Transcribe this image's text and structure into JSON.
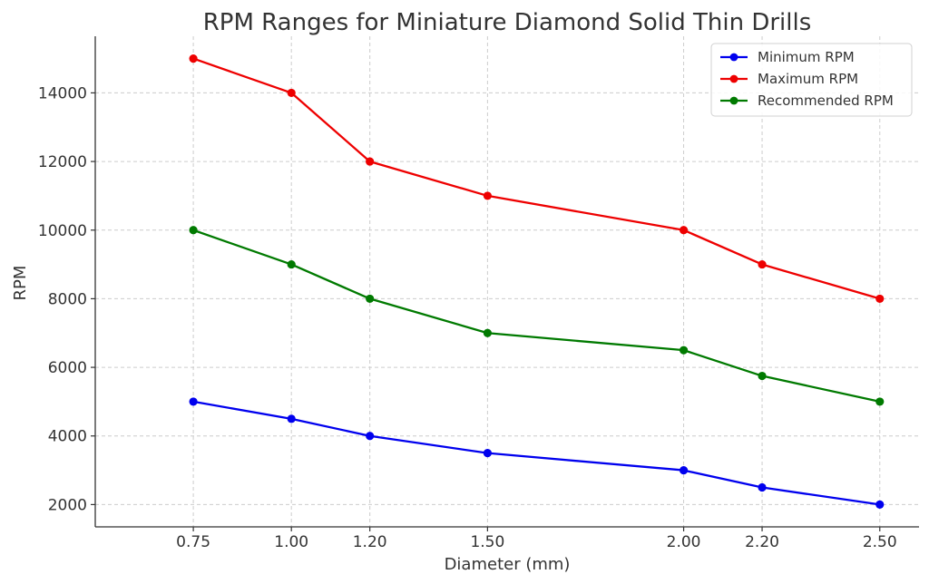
{
  "chart_data": {
    "type": "line",
    "title": "RPM Ranges for Miniature Diamond Solid Thin Drills",
    "xlabel": "Diameter (mm)",
    "ylabel": "RPM",
    "x": [
      0.75,
      1.0,
      1.2,
      1.5,
      2.0,
      2.2,
      2.5
    ],
    "x_tick_labels": [
      "0.75",
      "1.00",
      "1.20",
      "1.50",
      "2.00",
      "2.20",
      "2.50"
    ],
    "y_ticks": [
      2000,
      4000,
      6000,
      8000,
      10000,
      12000,
      14000
    ],
    "xlim": [
      0.5,
      2.6
    ],
    "ylim": [
      1350,
      15650
    ],
    "grid": true,
    "legend_position": "top-right",
    "series": [
      {
        "name": "Minimum RPM",
        "color": "#0000ee",
        "values": [
          5000,
          4500,
          4000,
          3500,
          3000,
          2500,
          2000
        ]
      },
      {
        "name": "Maximum RPM",
        "color": "#ee0000",
        "values": [
          15000,
          14000,
          12000,
          11000,
          10000,
          9000,
          8000
        ]
      },
      {
        "name": "Recommended RPM",
        "color": "#007a00",
        "values": [
          10000,
          9000,
          8000,
          7000,
          6500,
          5750,
          5000
        ]
      }
    ]
  }
}
